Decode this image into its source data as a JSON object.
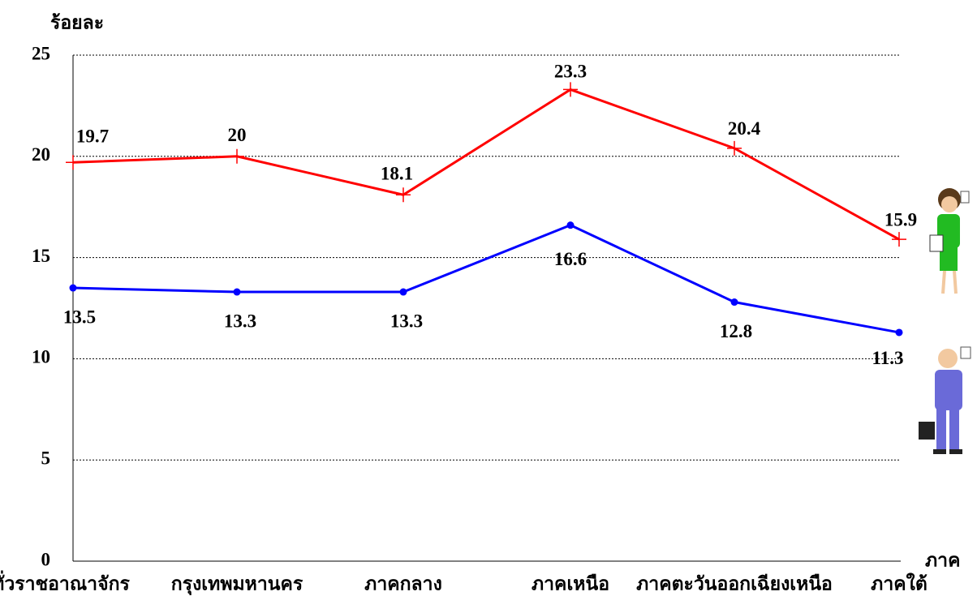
{
  "chart_data": {
    "type": "line",
    "y_label": "ร้อยละ",
    "x_label": "ภาค",
    "categories": [
      "ทั่วราชอาณาจักร",
      "กรุงเทพมหานคร",
      "ภาคกลาง",
      "ภาคเหนือ",
      "ภาคตะวันออกเฉียงเหนือ",
      "ภาคใต้"
    ],
    "series": [
      {
        "color": "#ff0000",
        "marker": "plus",
        "values": [
          19.7,
          20.0,
          18.1,
          23.3,
          20.4,
          15.9
        ]
      },
      {
        "color": "#0000ff",
        "marker": "dot",
        "values": [
          13.5,
          13.3,
          13.3,
          16.6,
          12.8,
          11.3
        ]
      }
    ],
    "ylim": [
      0,
      25
    ],
    "yticks": [
      0,
      5,
      10,
      15,
      20,
      25
    ],
    "grid": true
  }
}
